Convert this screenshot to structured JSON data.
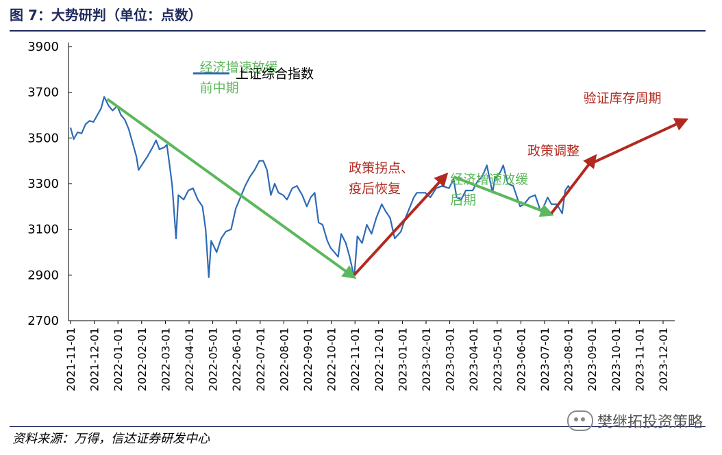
{
  "header": {
    "title": "图 7：大势研判（单位：点数）"
  },
  "footer": {
    "source": "资料来源：万得，信达证券研发中心",
    "watermark": "樊继拓投资策略"
  },
  "colors": {
    "line": "#2e6bb5",
    "green": "#5cb85c",
    "red": "#b22a1f",
    "title": "#1f2a5c"
  },
  "chart_data": {
    "type": "line",
    "ylim": [
      2700,
      3900
    ],
    "yticks": [
      "3900",
      "3700",
      "3500",
      "3300",
      "3100",
      "2900",
      "2700"
    ],
    "xticks": [
      "2021-11-01",
      "2021-12-01",
      "2022-01-01",
      "2022-02-01",
      "2022-03-01",
      "2022-04-01",
      "2022-05-01",
      "2022-06-01",
      "2022-07-01",
      "2022-08-01",
      "2022-09-01",
      "2022-10-01",
      "2022-11-01",
      "2022-12-01",
      "2023-01-01",
      "2023-02-01",
      "2023-03-01",
      "2023-04-01",
      "2023-05-01",
      "2023-06-01",
      "2023-07-01",
      "2023-08-01",
      "2023-09-01",
      "2023-10-01",
      "2023-11-01",
      "2023-12-01"
    ],
    "series": [
      {
        "name": "上证综合指数",
        "points": [
          [
            "2021-11-01",
            3545
          ],
          [
            "2021-11-05",
            3495
          ],
          [
            "2021-11-10",
            3525
          ],
          [
            "2021-11-15",
            3520
          ],
          [
            "2021-11-20",
            3560
          ],
          [
            "2021-11-25",
            3575
          ],
          [
            "2021-11-30",
            3570
          ],
          [
            "2021-12-05",
            3600
          ],
          [
            "2021-12-10",
            3630
          ],
          [
            "2021-12-14",
            3680
          ],
          [
            "2021-12-20",
            3640
          ],
          [
            "2021-12-25",
            3620
          ],
          [
            "2021-12-31",
            3640
          ],
          [
            "2022-01-05",
            3600
          ],
          [
            "2022-01-10",
            3580
          ],
          [
            "2022-01-15",
            3540
          ],
          [
            "2022-01-20",
            3480
          ],
          [
            "2022-01-25",
            3420
          ],
          [
            "2022-01-28",
            3360
          ],
          [
            "2022-02-08",
            3420
          ],
          [
            "2022-02-14",
            3460
          ],
          [
            "2022-02-18",
            3490
          ],
          [
            "2022-02-22",
            3450
          ],
          [
            "2022-02-28",
            3460
          ],
          [
            "2022-03-03",
            3470
          ],
          [
            "2022-03-07",
            3370
          ],
          [
            "2022-03-10",
            3290
          ],
          [
            "2022-03-15",
            3060
          ],
          [
            "2022-03-18",
            3250
          ],
          [
            "2022-03-25",
            3230
          ],
          [
            "2022-03-31",
            3270
          ],
          [
            "2022-04-06",
            3280
          ],
          [
            "2022-04-12",
            3230
          ],
          [
            "2022-04-18",
            3200
          ],
          [
            "2022-04-22",
            3100
          ],
          [
            "2022-04-26",
            2890
          ],
          [
            "2022-04-29",
            3050
          ],
          [
            "2022-05-06",
            3000
          ],
          [
            "2022-05-12",
            3060
          ],
          [
            "2022-05-18",
            3090
          ],
          [
            "2022-05-25",
            3100
          ],
          [
            "2022-05-31",
            3190
          ],
          [
            "2022-06-06",
            3240
          ],
          [
            "2022-06-12",
            3290
          ],
          [
            "2022-06-18",
            3330
          ],
          [
            "2022-06-24",
            3360
          ],
          [
            "2022-06-30",
            3400
          ],
          [
            "2022-07-05",
            3400
          ],
          [
            "2022-07-10",
            3360
          ],
          [
            "2022-07-15",
            3250
          ],
          [
            "2022-07-20",
            3300
          ],
          [
            "2022-07-25",
            3260
          ],
          [
            "2022-07-31",
            3250
          ],
          [
            "2022-08-05",
            3230
          ],
          [
            "2022-08-12",
            3280
          ],
          [
            "2022-08-18",
            3290
          ],
          [
            "2022-08-25",
            3250
          ],
          [
            "2022-08-31",
            3200
          ],
          [
            "2022-09-05",
            3240
          ],
          [
            "2022-09-10",
            3260
          ],
          [
            "2022-09-15",
            3130
          ],
          [
            "2022-09-20",
            3120
          ],
          [
            "2022-09-26",
            3050
          ],
          [
            "2022-09-30",
            3020
          ],
          [
            "2022-10-10",
            2980
          ],
          [
            "2022-10-14",
            3080
          ],
          [
            "2022-10-20",
            3040
          ],
          [
            "2022-10-25",
            2980
          ],
          [
            "2022-10-31",
            2890
          ],
          [
            "2022-11-04",
            3070
          ],
          [
            "2022-11-10",
            3040
          ],
          [
            "2022-11-16",
            3120
          ],
          [
            "2022-11-22",
            3080
          ],
          [
            "2022-11-28",
            3150
          ],
          [
            "2022-12-05",
            3210
          ],
          [
            "2022-12-10",
            3180
          ],
          [
            "2022-12-16",
            3150
          ],
          [
            "2022-12-22",
            3060
          ],
          [
            "2022-12-30",
            3090
          ],
          [
            "2023-01-05",
            3150
          ],
          [
            "2023-01-10",
            3190
          ],
          [
            "2023-01-16",
            3240
          ],
          [
            "2023-01-20",
            3260
          ],
          [
            "2023-01-31",
            3260
          ],
          [
            "2023-02-06",
            3240
          ],
          [
            "2023-02-13",
            3280
          ],
          [
            "2023-02-20",
            3290
          ],
          [
            "2023-02-28",
            3280
          ],
          [
            "2023-03-06",
            3320
          ],
          [
            "2023-03-10",
            3240
          ],
          [
            "2023-03-16",
            3230
          ],
          [
            "2023-03-22",
            3270
          ],
          [
            "2023-03-31",
            3270
          ],
          [
            "2023-04-06",
            3310
          ],
          [
            "2023-04-12",
            3330
          ],
          [
            "2023-04-18",
            3380
          ],
          [
            "2023-04-25",
            3260
          ],
          [
            "2023-04-28",
            3320
          ],
          [
            "2023-05-05",
            3350
          ],
          [
            "2023-05-09",
            3380
          ],
          [
            "2023-05-15",
            3300
          ],
          [
            "2023-05-22",
            3290
          ],
          [
            "2023-05-31",
            3200
          ],
          [
            "2023-06-05",
            3210
          ],
          [
            "2023-06-12",
            3240
          ],
          [
            "2023-06-19",
            3250
          ],
          [
            "2023-06-26",
            3180
          ],
          [
            "2023-06-30",
            3200
          ],
          [
            "2023-07-05",
            3240
          ],
          [
            "2023-07-10",
            3210
          ],
          [
            "2023-07-17",
            3210
          ],
          [
            "2023-07-24",
            3170
          ],
          [
            "2023-07-28",
            3270
          ],
          [
            "2023-08-01",
            3290
          ],
          [
            "2023-08-03",
            3280
          ]
        ]
      }
    ],
    "trend_arrows": [
      {
        "color": "green",
        "from": [
          "2021-12-18",
          3670
        ],
        "to": [
          "2022-10-31",
          2890
        ],
        "label": [
          "经济增速放缓",
          "前中期"
        ]
      },
      {
        "color": "red",
        "from": [
          "2022-10-31",
          2900
        ],
        "to": [
          "2023-02-25",
          3340
        ],
        "label": [
          "政策拐点、",
          "疫后恢复"
        ]
      },
      {
        "color": "green",
        "from": [
          "2023-03-06",
          3330
        ],
        "to": [
          "2023-07-10",
          3165
        ],
        "label": [
          "经济增速放缓",
          "后期"
        ]
      },
      {
        "color": "red",
        "from": [
          "2023-07-10",
          3170
        ],
        "to": [
          "2023-09-05",
          3420
        ],
        "label": [
          "政策调整"
        ]
      },
      {
        "color": "red",
        "from": [
          "2023-09-01",
          3390
        ],
        "to": [
          "2023-12-31",
          3580
        ],
        "label": [
          "验证库存周期"
        ]
      }
    ]
  }
}
